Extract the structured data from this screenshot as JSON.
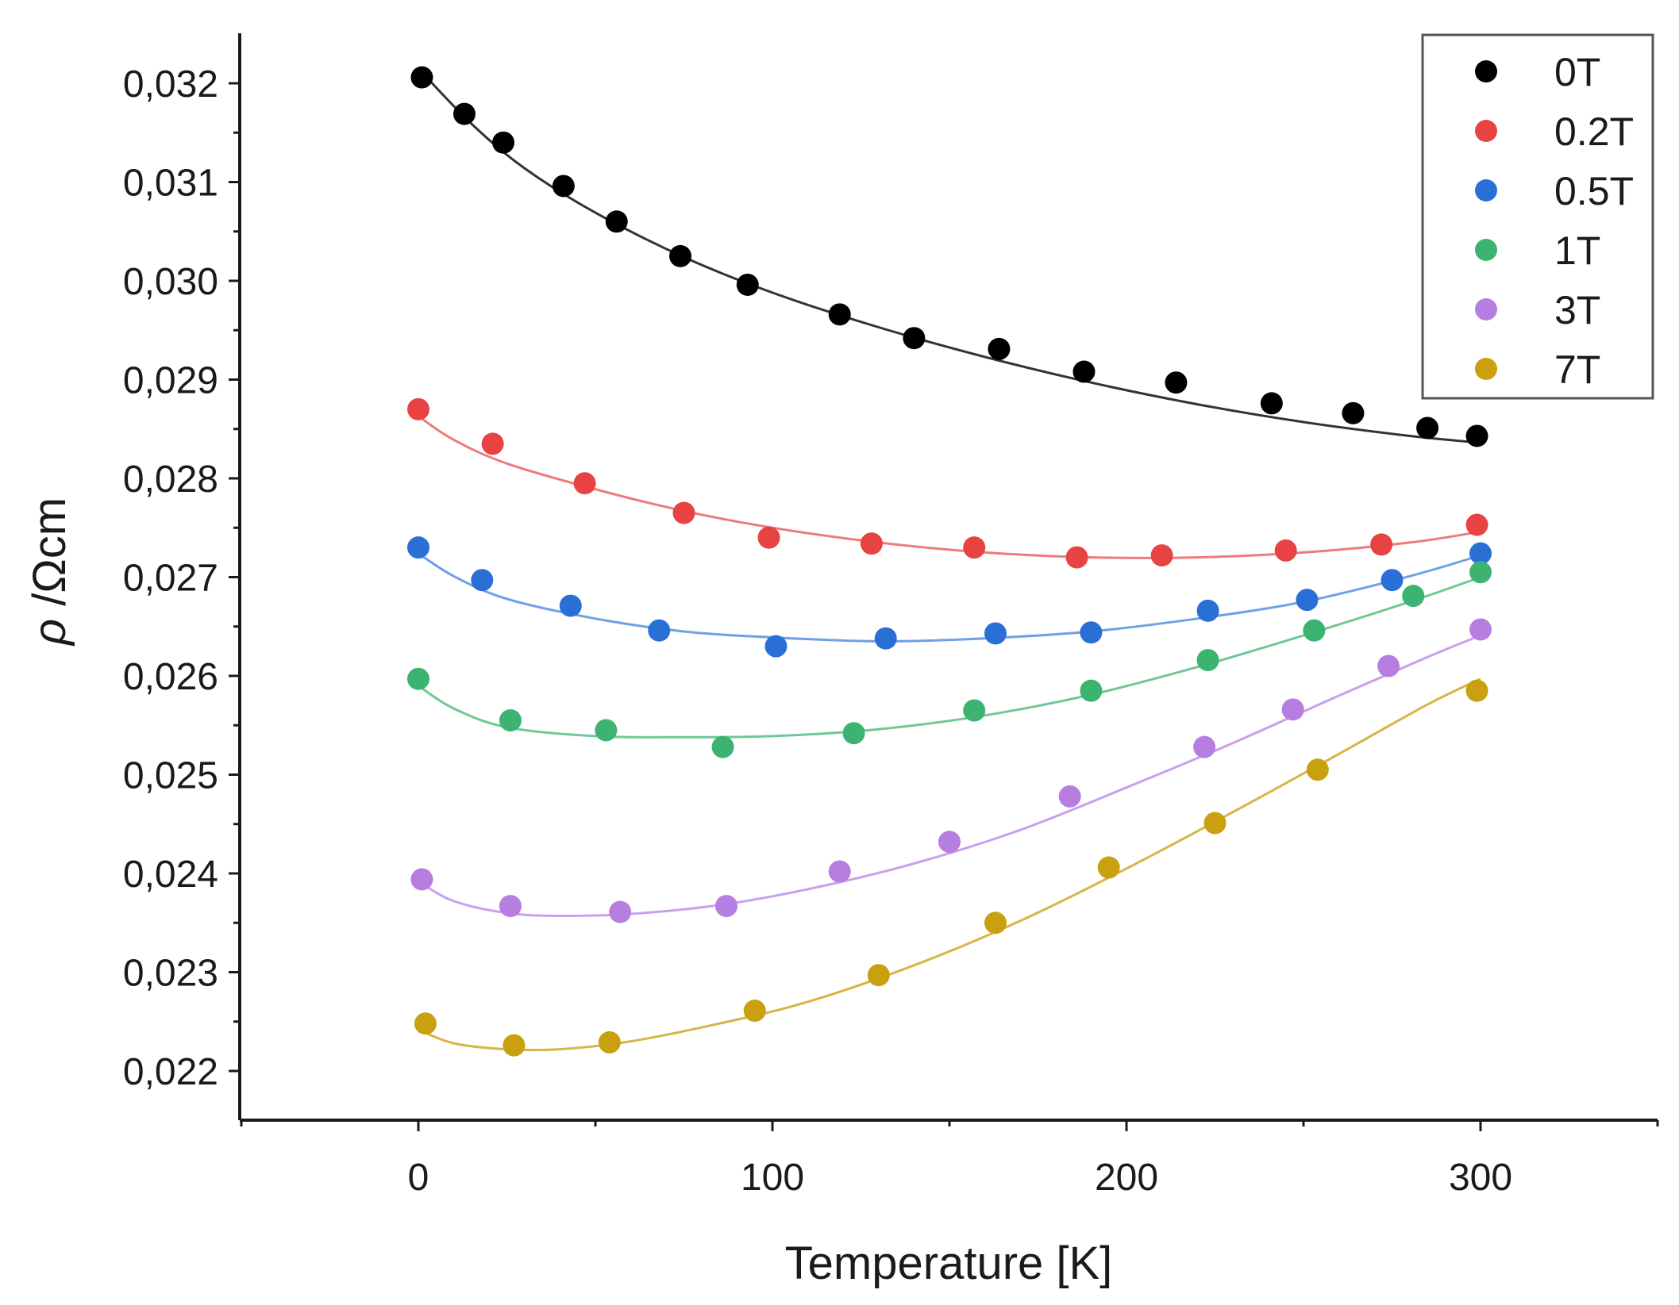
{
  "chart_data": {
    "type": "scatter",
    "title": "",
    "xlabel": "Temperature [K]",
    "ylabel_symbol": "ρ",
    "ylabel_unit": " /Ωcm",
    "xlim": [
      -50,
      350
    ],
    "ylim": [
      0.0215,
      0.0325
    ],
    "xticks": [
      0,
      100,
      200,
      300
    ],
    "xtick_labels": [
      "0",
      "100",
      "200",
      "300"
    ],
    "yticks": [
      0.022,
      0.023,
      0.024,
      0.025,
      0.026,
      0.027,
      0.028,
      0.029,
      0.03,
      0.031,
      0.032
    ],
    "ytick_labels": [
      "0,022",
      "0,023",
      "0,024",
      "0,025",
      "0,026",
      "0,027",
      "0,028",
      "0,029",
      "0,030",
      "0,031",
      "0,032"
    ],
    "grid": false,
    "legend_position": "top-right",
    "series": [
      {
        "name": "0T",
        "color": "#000000",
        "line_color": "#333333",
        "x": [
          1,
          13,
          24,
          41,
          56,
          74,
          93,
          119,
          140,
          164,
          188,
          214,
          241,
          264,
          285,
          299
        ],
        "y": [
          0.03206,
          0.03169,
          0.0314,
          0.03096,
          0.0306,
          0.03025,
          0.02996,
          0.02966,
          0.02942,
          0.02931,
          0.02908,
          0.02897,
          0.02876,
          0.02866,
          0.02851,
          0.02843
        ],
        "fit_x": [
          0,
          15,
          30,
          50,
          75,
          100,
          130,
          160,
          190,
          220,
          250,
          280,
          300
        ],
        "fit_y": [
          0.03215,
          0.03159,
          0.03114,
          0.03069,
          0.03024,
          0.02988,
          0.02953,
          0.02923,
          0.02897,
          0.02875,
          0.02857,
          0.02843,
          0.02836
        ]
      },
      {
        "name": "0.2T",
        "color": "#e84343",
        "line_color": "#ee7a7a",
        "x": [
          0,
          21,
          47,
          75,
          99,
          128,
          157,
          186,
          210,
          245,
          272,
          299
        ],
        "y": [
          0.0287,
          0.02835,
          0.02795,
          0.02765,
          0.0274,
          0.02734,
          0.0273,
          0.0272,
          0.02722,
          0.02727,
          0.02733,
          0.02753
        ],
        "fit_x": [
          0,
          10,
          25,
          50,
          75,
          100,
          130,
          160,
          190,
          220,
          250,
          280,
          300
        ],
        "fit_y": [
          0.02863,
          0.02839,
          0.02815,
          0.02789,
          0.02767,
          0.0275,
          0.02735,
          0.02725,
          0.0272,
          0.0272,
          0.02725,
          0.02735,
          0.02746
        ]
      },
      {
        "name": "0.5T",
        "color": "#2a6fd6",
        "line_color": "#6f9fe6",
        "x": [
          0,
          18,
          43,
          68,
          101,
          132,
          163,
          190,
          223,
          251,
          275,
          300
        ],
        "y": [
          0.0273,
          0.02697,
          0.02671,
          0.02646,
          0.0263,
          0.02638,
          0.02643,
          0.02644,
          0.02666,
          0.02677,
          0.02697,
          0.02724
        ],
        "fit_x": [
          0,
          10,
          25,
          50,
          75,
          100,
          130,
          160,
          190,
          220,
          250,
          280,
          300
        ],
        "fit_y": [
          0.02724,
          0.02701,
          0.02678,
          0.02658,
          0.02645,
          0.02639,
          0.02635,
          0.02638,
          0.02645,
          0.02658,
          0.02675,
          0.02701,
          0.02722
        ]
      },
      {
        "name": "1T",
        "color": "#3cb371",
        "line_color": "#6fc895",
        "x": [
          0,
          26,
          53,
          86,
          123,
          157,
          190,
          223,
          253,
          281,
          300
        ],
        "y": [
          0.02597,
          0.02555,
          0.02545,
          0.02528,
          0.02542,
          0.02565,
          0.02585,
          0.02616,
          0.02646,
          0.02681,
          0.02705
        ],
        "fit_x": [
          0,
          10,
          25,
          50,
          75,
          100,
          130,
          160,
          190,
          220,
          250,
          280,
          300
        ],
        "fit_y": [
          0.0259,
          0.02567,
          0.02548,
          0.02539,
          0.02538,
          0.02539,
          0.02546,
          0.0256,
          0.02581,
          0.02609,
          0.02641,
          0.02675,
          0.027
        ]
      },
      {
        "name": "3T",
        "color": "#b57ee0",
        "line_color": "#c9a0ea",
        "x": [
          1,
          26,
          57,
          87,
          119,
          150,
          184,
          222,
          247,
          274,
          300
        ],
        "y": [
          0.02394,
          0.02367,
          0.02361,
          0.02367,
          0.02402,
          0.02432,
          0.02478,
          0.02528,
          0.02566,
          0.0261,
          0.02647
        ],
        "fit_x": [
          0,
          10,
          25,
          40,
          60,
          85,
          110,
          140,
          170,
          200,
          230,
          260,
          285,
          300
        ],
        "fit_y": [
          0.02392,
          0.02372,
          0.0236,
          0.02357,
          0.02359,
          0.02368,
          0.02384,
          0.0241,
          0.02444,
          0.02487,
          0.02532,
          0.0258,
          0.02619,
          0.02641
        ]
      },
      {
        "name": "7T",
        "color": "#c9a010",
        "line_color": "#d6b545",
        "x": [
          2,
          27,
          54,
          95,
          130,
          163,
          195,
          225,
          254,
          299
        ],
        "y": [
          0.02248,
          0.02226,
          0.02229,
          0.02261,
          0.02297,
          0.0235,
          0.02406,
          0.02451,
          0.02505,
          0.02585
        ],
        "fit_x": [
          0,
          10,
          25,
          40,
          60,
          85,
          110,
          140,
          170,
          200,
          230,
          260,
          285,
          300
        ],
        "fit_y": [
          0.02242,
          0.02228,
          0.02222,
          0.02222,
          0.0223,
          0.02248,
          0.0227,
          0.02307,
          0.02352,
          0.02405,
          0.02462,
          0.02521,
          0.02571,
          0.02597
        ]
      }
    ]
  }
}
